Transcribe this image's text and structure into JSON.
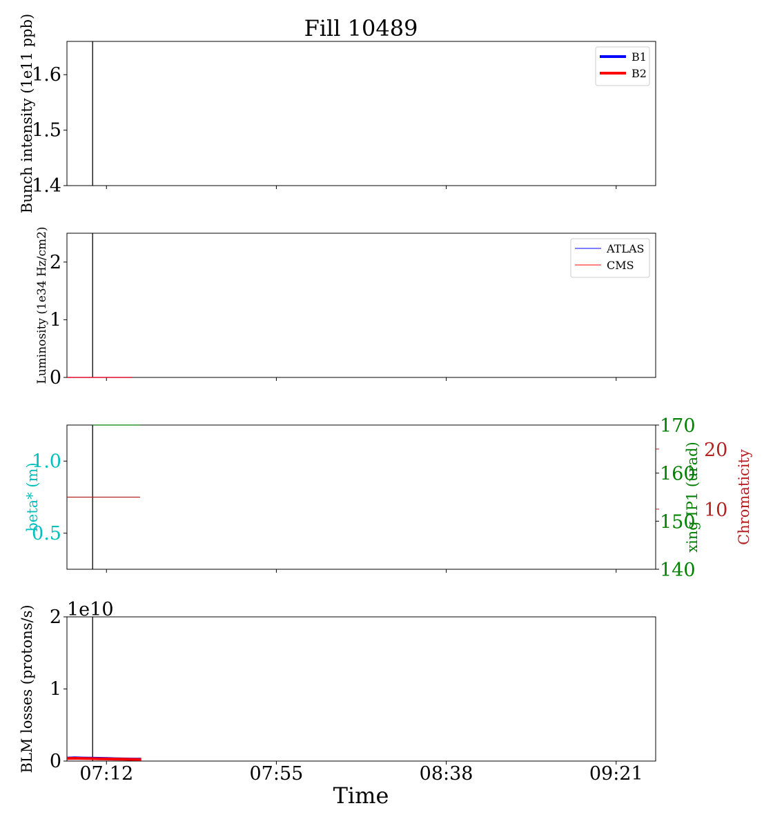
{
  "figure": {
    "title": "Fill 10489",
    "xlabel": "Time",
    "x_ticks": [
      "07:12",
      "07:55",
      "08:38",
      "09:21"
    ],
    "x_range_minutes": [
      -10,
      139
    ],
    "x_tick_minutes": [
      0,
      43,
      86,
      129
    ]
  },
  "colors": {
    "b1": "#0000ff",
    "b2": "#ff0000",
    "beta": "#00bfbf",
    "xing": "#008000",
    "chroma": "#b22222",
    "frame": "#000000"
  },
  "chart_data": [
    {
      "type": "line",
      "name": "intensity",
      "ylabel": "Bunch intensity (1e11 ppb)",
      "ylim": [
        1.4,
        1.66
      ],
      "yticks": [
        "1.4",
        "1.5",
        "1.6"
      ],
      "ytick_values": [
        1.4,
        1.5,
        1.6
      ],
      "legend": {
        "placement": "upper right",
        "entries": [
          "B1",
          "B2"
        ]
      },
      "vline_minutes": -3.5,
      "series": [
        {
          "name": "B1",
          "color": "#0000ff",
          "x": [],
          "y": []
        },
        {
          "name": "B2",
          "color": "#ff0000",
          "x": [],
          "y": []
        }
      ]
    },
    {
      "type": "line",
      "name": "luminosity",
      "ylabel": "Luminosity (1e34 Hz/cm2)",
      "ylim": [
        0,
        2.5
      ],
      "yticks": [
        "0",
        "1",
        "2"
      ],
      "ytick_values": [
        0,
        1,
        2
      ],
      "legend": {
        "placement": "upper right",
        "entries": [
          "ATLAS",
          "CMS"
        ]
      },
      "vline_minutes": -3.5,
      "series": [
        {
          "name": "ATLAS",
          "color": "#0000ff",
          "x": [
            -10,
            6.5
          ],
          "y": [
            0,
            0
          ]
        },
        {
          "name": "CMS",
          "color": "#ff0000",
          "x": [
            -10,
            6.5
          ],
          "y": [
            0,
            0
          ]
        }
      ]
    },
    {
      "type": "line",
      "name": "optics",
      "ylabel": "beta* (m)",
      "ylim": [
        0.25,
        1.25
      ],
      "yticks": [
        "0.5",
        "1.0"
      ],
      "ytick_values": [
        0.5,
        1.0
      ],
      "ylabel_right": "xing IP1 (urad)",
      "ylim_right": [
        140,
        170
      ],
      "yticks_right": [
        "140",
        "150",
        "160",
        "170"
      ],
      "ytick_values_right": [
        140,
        150,
        160,
        170
      ],
      "ylabel_right2": "Chromaticity",
      "ylim_right2": [
        0,
        24
      ],
      "yticks_right2": [
        "10",
        "20"
      ],
      "ytick_values_right2": [
        10,
        20
      ],
      "vline_minutes": -3.5,
      "series": [
        {
          "name": "xing",
          "axis": "right",
          "color": "#008000",
          "x": [
            -3.5,
            8.5
          ],
          "y": [
            170,
            170
          ]
        },
        {
          "name": "chromaticity",
          "axis": "right2",
          "color": "#b22222",
          "x": [
            -10,
            8.5
          ],
          "y": [
            12,
            12
          ]
        }
      ]
    },
    {
      "type": "line",
      "name": "blm",
      "ylabel": "BLM losses (protons/s)",
      "ylim": [
        0,
        2
      ],
      "yticks": [
        "0",
        "1",
        "2"
      ],
      "ytick_values": [
        0,
        1,
        2
      ],
      "offset_text": "1e10",
      "vline_minutes": -3.5,
      "series": [
        {
          "name": "B1",
          "color": "#0000ff",
          "x": [
            -10,
            -8,
            -6,
            -4,
            -2,
            0,
            2,
            4,
            6,
            8.8
          ],
          "y": [
            0.04,
            0.045,
            0.042,
            0.04,
            0.038,
            0.035,
            0.033,
            0.03,
            0.028,
            0.026
          ]
        },
        {
          "name": "B2",
          "color": "#ff0000",
          "x": [
            -10,
            -8,
            -6,
            -4,
            -2,
            0,
            2,
            4,
            6,
            8.8
          ],
          "y": [
            0.035,
            0.038,
            0.036,
            0.034,
            0.032,
            0.03,
            0.028,
            0.026,
            0.024,
            0.022
          ]
        }
      ]
    }
  ]
}
